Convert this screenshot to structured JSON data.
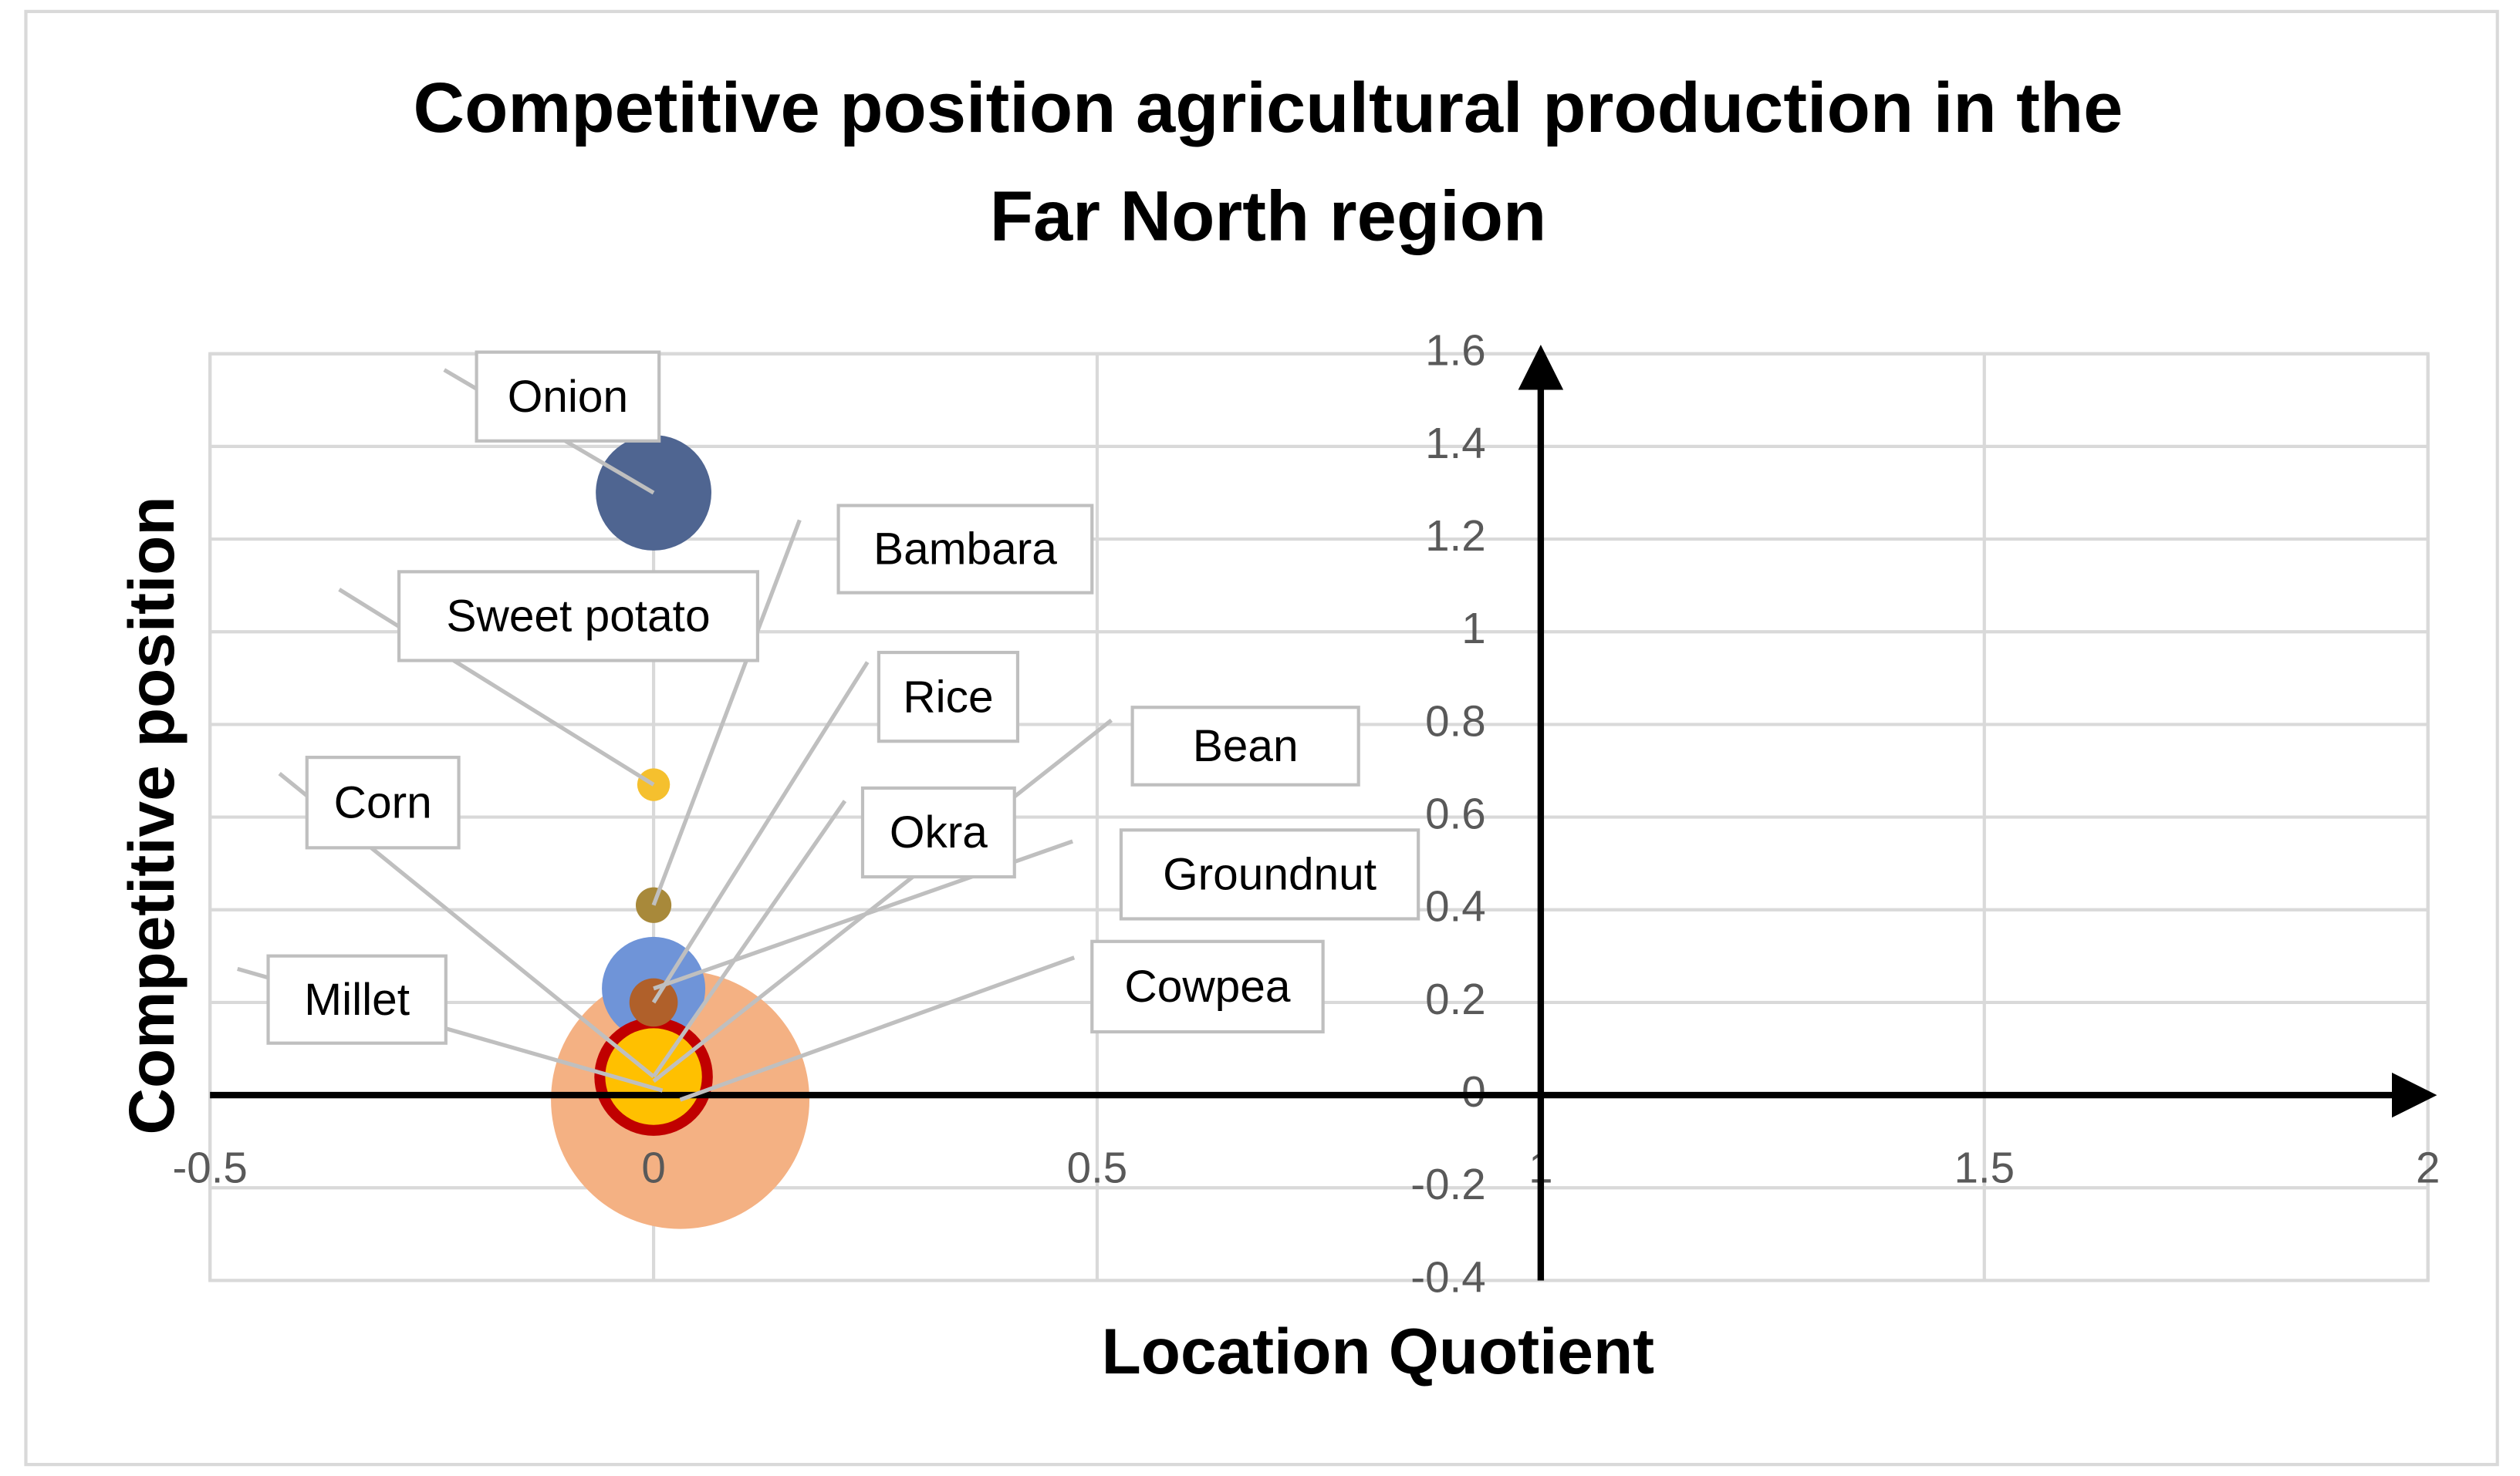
{
  "chart_data": {
    "type": "bubble",
    "title": [
      "Competitive position agricultural production in the",
      "Far North region"
    ],
    "x_label": "Location Quotient",
    "y_label": "Competitive position",
    "xlim": [
      -0.5,
      2
    ],
    "xticks": [
      -0.5,
      0,
      0.5,
      1,
      1.5,
      2
    ],
    "ylim": [
      -0.4,
      1.6
    ],
    "yticks": [
      -0.4,
      -0.2,
      0,
      0.2,
      0.4,
      0.6,
      0.8,
      1,
      1.2,
      1.4,
      1.6
    ],
    "grid": true,
    "series": [
      {
        "name": "Cowpea",
        "color": "#f4b183",
        "x": 0.03,
        "y": -0.01,
        "size": 100
      },
      {
        "name": "Groundnut",
        "color": "#6f94d8",
        "x": 0,
        "y": 0.23,
        "size": 16
      },
      {
        "name": "Okra",
        "color": "#c00000",
        "x": 0,
        "y": 0.04,
        "size": 21
      },
      {
        "name": "Bean",
        "color": "#70ad47",
        "x": 0,
        "y": 0.03,
        "size": 2
      },
      {
        "name": "Millet",
        "color": "#264478",
        "x": 0.01,
        "y": 0.01,
        "size": 2
      },
      {
        "name": "Corn",
        "color": "#ffc000",
        "x": 0,
        "y": 0.04,
        "size": 14
      },
      {
        "name": "Rice",
        "color": "#b0602a",
        "x": 0,
        "y": 0.2,
        "size": 3.5
      },
      {
        "name": "Bambara",
        "color": "#a8893a",
        "x": 0,
        "y": 0.41,
        "size": 1.9
      },
      {
        "name": "Sweet potato",
        "color": "#f5c02e",
        "x": 0,
        "y": 0.67,
        "size": 1.6
      },
      {
        "name": "Onion",
        "color": "#4f6591",
        "x": 0,
        "y": 1.3,
        "size": 20
      }
    ]
  }
}
